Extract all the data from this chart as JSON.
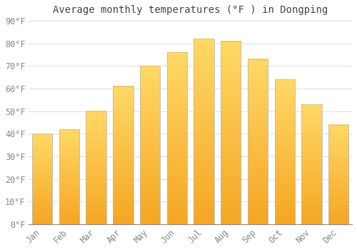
{
  "title": "Average monthly temperatures (°F ) in Dongping",
  "months": [
    "Jan",
    "Feb",
    "Mar",
    "Apr",
    "May",
    "Jun",
    "Jul",
    "Aug",
    "Sep",
    "Oct",
    "Nov",
    "Dec"
  ],
  "values": [
    40,
    42,
    50,
    61,
    70,
    76,
    82,
    81,
    73,
    64,
    53,
    44
  ],
  "bar_color_bottom": "#F5A623",
  "bar_color_top": "#FFD966",
  "bar_edge_color": "#BBBBBB",
  "ylim": [
    0,
    90
  ],
  "yticks": [
    0,
    10,
    20,
    30,
    40,
    50,
    60,
    70,
    80,
    90
  ],
  "ytick_labels": [
    "0°F",
    "10°F",
    "20°F",
    "30°F",
    "40°F",
    "50°F",
    "60°F",
    "70°F",
    "80°F",
    "90°F"
  ],
  "background_color": "#FFFFFF",
  "grid_color": "#DDDDDD",
  "title_fontsize": 10,
  "tick_fontsize": 8.5,
  "font_family": "monospace"
}
